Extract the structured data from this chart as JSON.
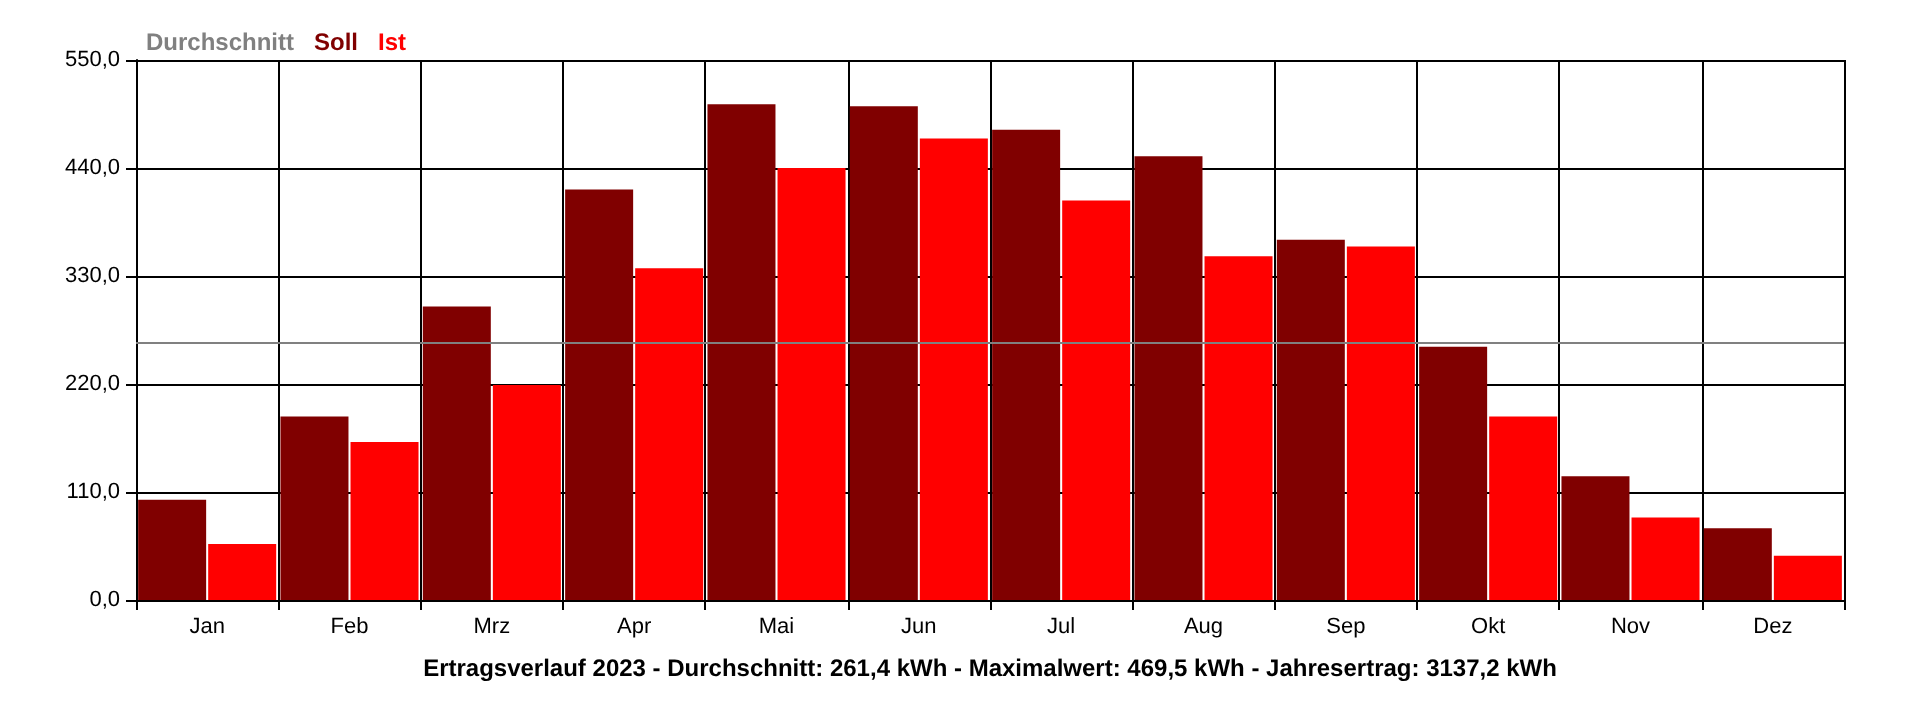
{
  "chart_data": {
    "type": "bar",
    "xlabel": "Ertragsverlauf 2023 - Durchschnitt: 261,4 kWh - Maximalwert: 469,5 kWh - Jahresertrag: 3137,2 kWh",
    "categories": [
      "Jan",
      "Feb",
      "Mrz",
      "Apr",
      "Mai",
      "Jun",
      "Jul",
      "Aug",
      "Sep",
      "Okt",
      "Nov",
      "Dez"
    ],
    "series": [
      {
        "name": "Soll",
        "color": "#800000",
        "values": [
          102,
          187,
          299,
          418,
          505,
          503,
          479,
          452,
          367,
          258,
          126,
          73
        ]
      },
      {
        "name": "Ist",
        "color": "#ff0000",
        "values": [
          57,
          161,
          219,
          338,
          440,
          470,
          407,
          350,
          360,
          187,
          84,
          45
        ]
      }
    ],
    "ylim": [
      0,
      550
    ],
    "yticks": [
      {
        "value": 0,
        "label": "0,0"
      },
      {
        "value": 110,
        "label": "110,0"
      },
      {
        "value": 220,
        "label": "220,0"
      },
      {
        "value": 330,
        "label": "330,0"
      },
      {
        "value": 440,
        "label": "440,0"
      },
      {
        "value": 550,
        "label": "550,0"
      }
    ],
    "ref_lines": [
      {
        "axis": "y",
        "value": 261.4,
        "label": "Durchschnitt",
        "color": "#808080"
      }
    ],
    "grid": true,
    "legend": "top left"
  }
}
